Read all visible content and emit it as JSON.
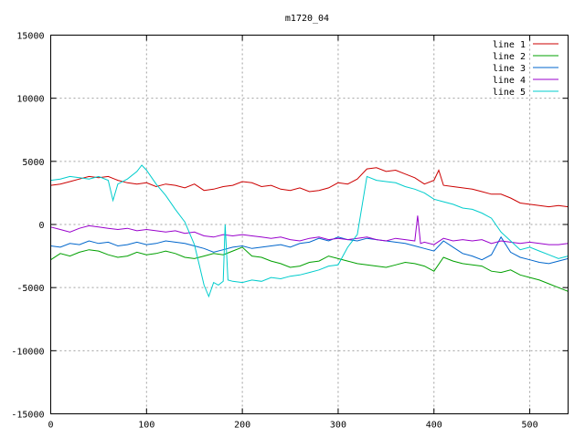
{
  "chart_data": {
    "type": "line",
    "title": "m1720_04",
    "xlabel": "",
    "ylabel": "",
    "xlim": [
      0,
      540
    ],
    "ylim": [
      -15000,
      15000
    ],
    "xticks": [
      0,
      100,
      200,
      300,
      400,
      500
    ],
    "yticks": [
      -15000,
      -10000,
      -5000,
      0,
      5000,
      10000,
      15000
    ],
    "grid": true,
    "legend_position": "top-right",
    "series": [
      {
        "name": "line 1",
        "color": "#cc0000",
        "x": [
          0,
          10,
          20,
          30,
          40,
          50,
          60,
          70,
          80,
          90,
          100,
          110,
          120,
          130,
          140,
          150,
          160,
          170,
          180,
          190,
          200,
          210,
          220,
          230,
          240,
          250,
          260,
          270,
          280,
          290,
          300,
          310,
          320,
          330,
          340,
          350,
          360,
          370,
          380,
          390,
          400,
          405,
          410,
          420,
          430,
          440,
          450,
          460,
          470,
          480,
          490,
          500,
          510,
          520,
          530,
          540
        ],
        "y": [
          3100,
          3200,
          3400,
          3600,
          3800,
          3700,
          3800,
          3500,
          3300,
          3200,
          3300,
          3000,
          3200,
          3100,
          2900,
          3200,
          2700,
          2800,
          3000,
          3100,
          3400,
          3300,
          3000,
          3100,
          2800,
          2700,
          2900,
          2600,
          2700,
          2900,
          3300,
          3200,
          3600,
          4400,
          4500,
          4200,
          4300,
          4000,
          3700,
          3200,
          3500,
          4300,
          3100,
          3000,
          2900,
          2800,
          2600,
          2400,
          2400,
          2100,
          1700,
          1600,
          1500,
          1400,
          1500,
          1400
        ]
      },
      {
        "name": "line 2",
        "color": "#00a000",
        "x": [
          0,
          10,
          20,
          30,
          40,
          50,
          60,
          70,
          80,
          90,
          100,
          110,
          120,
          130,
          140,
          150,
          160,
          170,
          180,
          190,
          200,
          210,
          220,
          230,
          240,
          250,
          260,
          270,
          280,
          290,
          300,
          310,
          320,
          330,
          340,
          350,
          360,
          370,
          380,
          390,
          400,
          410,
          420,
          430,
          440,
          450,
          460,
          470,
          480,
          490,
          500,
          510,
          520,
          530,
          540
        ],
        "y": [
          -2800,
          -2300,
          -2500,
          -2200,
          -2000,
          -2100,
          -2400,
          -2600,
          -2500,
          -2200,
          -2400,
          -2300,
          -2100,
          -2300,
          -2600,
          -2700,
          -2500,
          -2300,
          -2400,
          -2100,
          -1800,
          -2500,
          -2600,
          -2900,
          -3100,
          -3400,
          -3300,
          -3000,
          -2900,
          -2500,
          -2700,
          -2900,
          -3100,
          -3200,
          -3300,
          -3400,
          -3200,
          -3000,
          -3100,
          -3300,
          -3700,
          -2600,
          -2900,
          -3100,
          -3200,
          -3300,
          -3700,
          -3800,
          -3600,
          -4000,
          -4200,
          -4400,
          -4700,
          -5000,
          -5300
        ]
      },
      {
        "name": "line 3",
        "color": "#0066cc",
        "x": [
          0,
          10,
          20,
          30,
          40,
          50,
          60,
          70,
          80,
          90,
          100,
          110,
          120,
          130,
          140,
          150,
          160,
          170,
          180,
          190,
          200,
          210,
          220,
          230,
          240,
          250,
          260,
          270,
          280,
          290,
          300,
          310,
          320,
          330,
          340,
          350,
          360,
          370,
          380,
          390,
          400,
          410,
          420,
          430,
          440,
          450,
          460,
          470,
          480,
          490,
          500,
          510,
          520,
          530,
          540
        ],
        "y": [
          -1700,
          -1800,
          -1500,
          -1600,
          -1300,
          -1500,
          -1400,
          -1700,
          -1600,
          -1400,
          -1600,
          -1500,
          -1300,
          -1400,
          -1500,
          -1700,
          -1900,
          -2200,
          -2000,
          -1800,
          -1700,
          -1900,
          -1800,
          -1700,
          -1600,
          -1800,
          -1500,
          -1400,
          -1100,
          -1300,
          -1000,
          -1200,
          -1300,
          -1100,
          -1200,
          -1300,
          -1400,
          -1500,
          -1700,
          -1900,
          -2100,
          -1300,
          -1800,
          -2300,
          -2500,
          -2800,
          -2400,
          -1000,
          -2200,
          -2600,
          -2800,
          -3000,
          -3100,
          -2900,
          -2700
        ]
      },
      {
        "name": "line 4",
        "color": "#9900cc",
        "x": [
          0,
          10,
          20,
          30,
          40,
          50,
          60,
          70,
          80,
          90,
          100,
          110,
          120,
          130,
          140,
          150,
          160,
          170,
          180,
          190,
          200,
          210,
          220,
          230,
          240,
          250,
          260,
          270,
          280,
          290,
          300,
          310,
          320,
          330,
          340,
          350,
          360,
          370,
          380,
          383,
          386,
          390,
          400,
          410,
          420,
          430,
          440,
          450,
          460,
          470,
          480,
          490,
          500,
          510,
          520,
          530,
          540
        ],
        "y": [
          -200,
          -400,
          -600,
          -300,
          -100,
          -200,
          -300,
          -400,
          -300,
          -500,
          -400,
          -500,
          -600,
          -500,
          -700,
          -600,
          -900,
          -1000,
          -800,
          -900,
          -800,
          -900,
          -1000,
          -1100,
          -1000,
          -1200,
          -1300,
          -1100,
          -1000,
          -1200,
          -1100,
          -1200,
          -1100,
          -1000,
          -1200,
          -1300,
          -1100,
          -1200,
          -1300,
          700,
          -1500,
          -1400,
          -1600,
          -1100,
          -1300,
          -1200,
          -1300,
          -1200,
          -1500,
          -1300,
          -1400,
          -1500,
          -1400,
          -1500,
          -1600,
          -1600,
          -1500
        ]
      },
      {
        "name": "line 5",
        "color": "#00cccc",
        "x": [
          0,
          10,
          20,
          30,
          40,
          50,
          60,
          65,
          70,
          80,
          90,
          95,
          100,
          110,
          120,
          130,
          140,
          150,
          155,
          160,
          165,
          170,
          175,
          180,
          182,
          185,
          190,
          200,
          210,
          220,
          230,
          240,
          250,
          260,
          270,
          280,
          290,
          300,
          310,
          320,
          330,
          340,
          350,
          360,
          370,
          380,
          390,
          400,
          410,
          420,
          430,
          440,
          450,
          460,
          470,
          480,
          490,
          500,
          510,
          520,
          530,
          540
        ],
        "y": [
          3500,
          3600,
          3800,
          3700,
          3600,
          3800,
          3500,
          1900,
          3200,
          3600,
          4200,
          4700,
          4300,
          3200,
          2300,
          1200,
          200,
          -1600,
          -3200,
          -4800,
          -5700,
          -4600,
          -4800,
          -4500,
          0,
          -4400,
          -4500,
          -4600,
          -4400,
          -4500,
          -4200,
          -4300,
          -4100,
          -4000,
          -3800,
          -3600,
          -3300,
          -3200,
          -1800,
          -800,
          3800,
          3500,
          3400,
          3300,
          3000,
          2800,
          2500,
          2000,
          1800,
          1600,
          1300,
          1200,
          900,
          500,
          -600,
          -1300,
          -2000,
          -1800,
          -2100,
          -2400,
          -2700,
          -2500
        ]
      }
    ]
  }
}
